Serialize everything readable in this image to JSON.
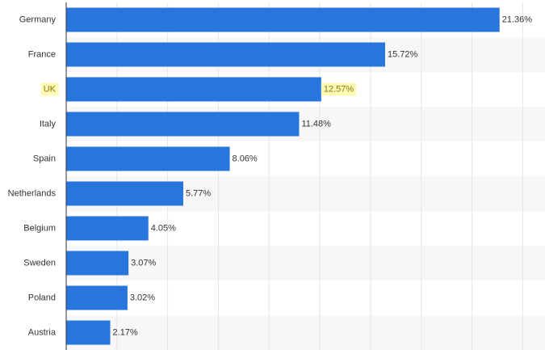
{
  "chart_data": {
    "type": "hbar",
    "categories": [
      "Germany",
      "France",
      "UK",
      "Italy",
      "Spain",
      "Netherlands",
      "Belgium",
      "Sweden",
      "Poland",
      "Austria"
    ],
    "values": [
      21.36,
      15.72,
      12.57,
      11.48,
      8.06,
      5.77,
      4.05,
      3.07,
      3.02,
      2.17
    ],
    "value_labels": [
      "21.36%",
      "15.72%",
      "12.57%",
      "11.48%",
      "8.06%",
      "5.77%",
      "4.05%",
      "3.07%",
      "3.02%",
      "2.17%"
    ],
    "color": "#2876dd",
    "xlim": [
      0,
      23.6
    ],
    "xticks": [
      0,
      2.5,
      5,
      7.5,
      10,
      12.5,
      15,
      17.5,
      20,
      22.5
    ],
    "grid": true,
    "highlight": {
      "index": 2,
      "color": "#fcf9b4"
    }
  }
}
